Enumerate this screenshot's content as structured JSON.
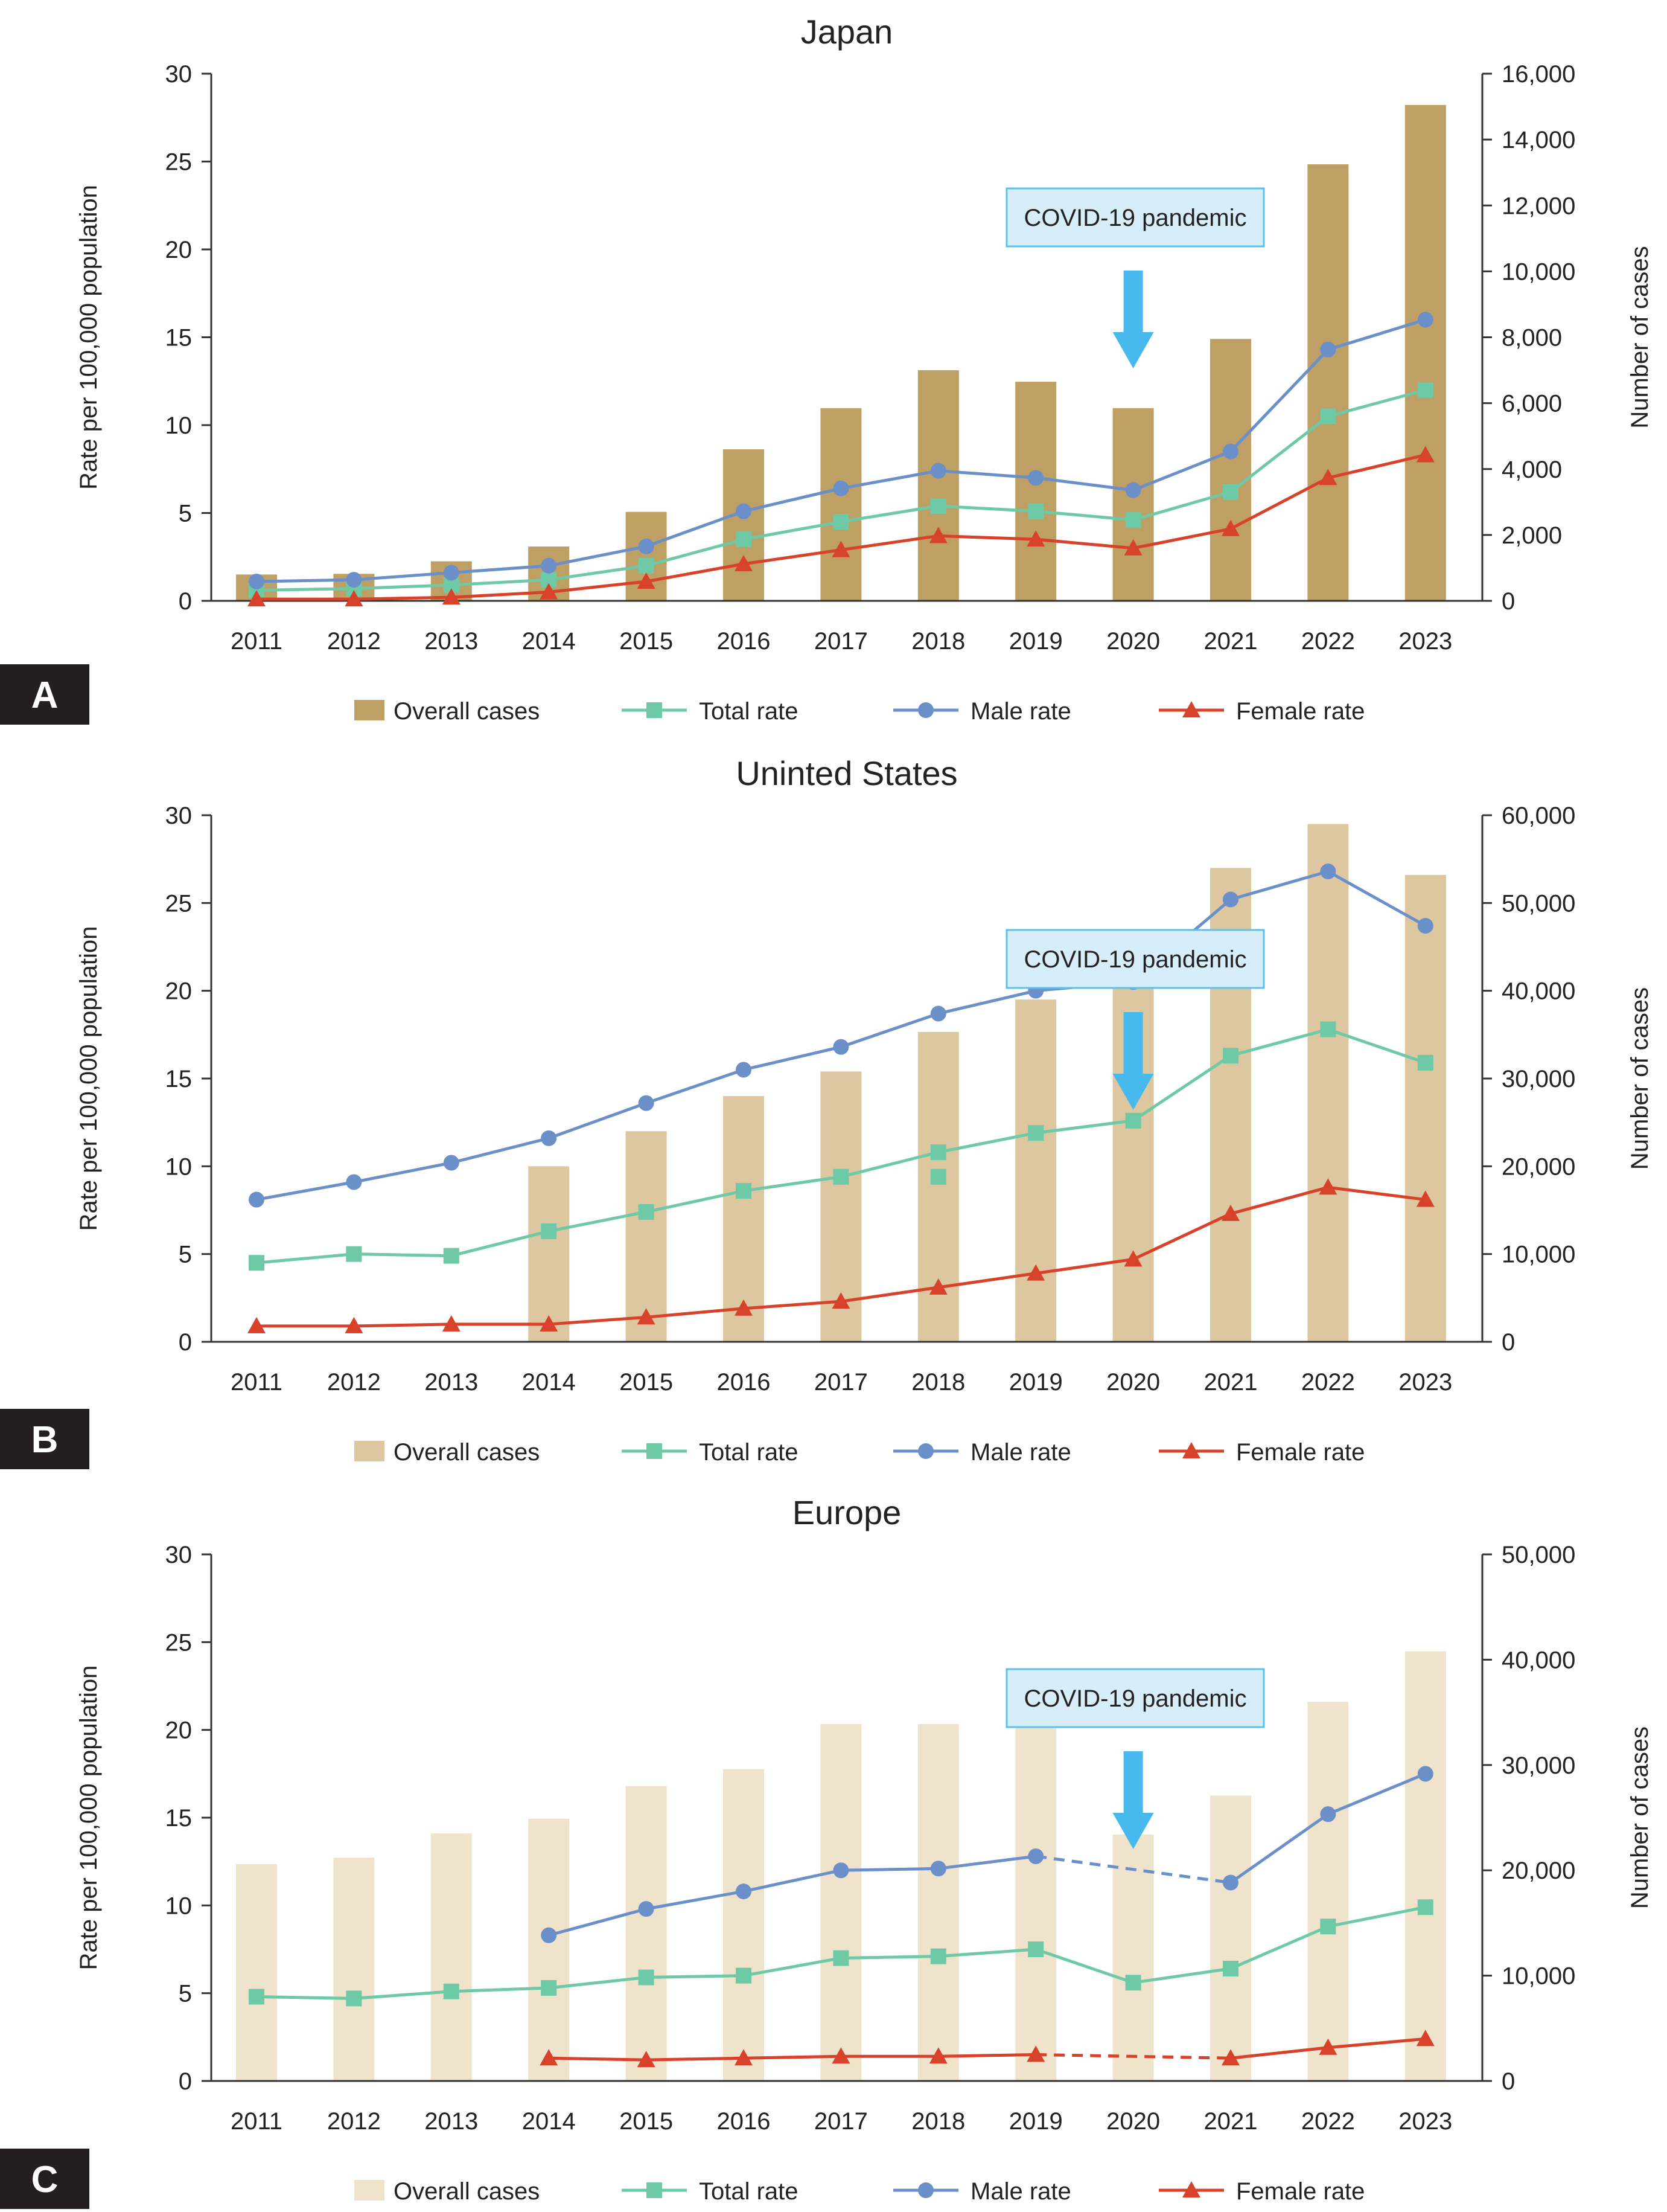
{
  "chart_data": [
    {
      "type": "bar",
      "panel": "A",
      "title": "Japan",
      "ylabel": "Rate per 100,000 population",
      "y2label": "Number of cases",
      "ylim": [
        0,
        30
      ],
      "yticks": [
        0,
        5,
        10,
        15,
        20,
        25,
        30
      ],
      "y2lim": [
        0,
        16000
      ],
      "y2ticks": [
        "0",
        "2,000",
        "4,000",
        "6,000",
        "8,000",
        "10,000",
        "12,000",
        "14,000",
        "16,000"
      ],
      "categories": [
        "2011",
        "2012",
        "2013",
        "2014",
        "2015",
        "2016",
        "2017",
        "2018",
        "2019",
        "2020",
        "2021",
        "2022",
        "2023"
      ],
      "annotation": {
        "text": "COVID-19 pandemic",
        "year": "2020",
        "box_fill": "#d7eefa",
        "box_stroke": "#5bc2ea",
        "arrow_color": "#47b9ec"
      },
      "bar_color": "#bfa064",
      "series": [
        {
          "name": "Overall cases",
          "kind": "bar",
          "axis": "right",
          "color": "#bfa064",
          "values": [
            800,
            820,
            1200,
            1650,
            2700,
            4600,
            5850,
            7000,
            6650,
            5850,
            7950,
            13250,
            15050
          ]
        },
        {
          "name": "Total rate",
          "kind": "line",
          "marker": "square",
          "color": "#6ec9a6",
          "values": [
            0.6,
            0.7,
            0.9,
            1.2,
            2.0,
            3.5,
            4.5,
            5.4,
            5.1,
            4.6,
            6.2,
            10.5,
            12.0
          ]
        },
        {
          "name": "Male rate",
          "kind": "line",
          "marker": "circle",
          "color": "#6b8fc9",
          "values": [
            1.1,
            1.2,
            1.6,
            2.0,
            3.1,
            5.1,
            6.4,
            7.4,
            7.0,
            6.3,
            8.5,
            14.3,
            16.0
          ]
        },
        {
          "name": "Female rate",
          "kind": "line",
          "marker": "triangle",
          "color": "#d8412a",
          "values": [
            0.1,
            0.1,
            0.2,
            0.5,
            1.1,
            2.1,
            2.9,
            3.7,
            3.5,
            3.0,
            4.1,
            7.0,
            8.3
          ]
        }
      ]
    },
    {
      "type": "bar",
      "panel": "B",
      "title": "Uninted States",
      "ylabel": "Rate per 100,000 population",
      "y2label": "Number of cases",
      "ylim": [
        0,
        30
      ],
      "yticks": [
        0,
        5,
        10,
        15,
        20,
        25,
        30
      ],
      "y2lim": [
        0,
        60000
      ],
      "y2ticks": [
        "0",
        "10,000",
        "20,000",
        "30,000",
        "40,000",
        "50,000",
        "60,000"
      ],
      "categories": [
        "2011",
        "2012",
        "2013",
        "2014",
        "2015",
        "2016",
        "2017",
        "2018",
        "2019",
        "2020",
        "2021",
        "2022",
        "2023"
      ],
      "annotation": {
        "text": "COVID-19 pandemic",
        "year": "2020",
        "box_fill": "#d7eefa",
        "box_stroke": "#5bc2ea",
        "arrow_color": "#47b9ec"
      },
      "bar_color": "#dcc7a0",
      "series": [
        {
          "name": "Overall cases",
          "kind": "bar",
          "axis": "right",
          "color": "#dcc7a0",
          "values": [
            null,
            null,
            null,
            20000,
            24000,
            28000,
            30800,
            35300,
            39000,
            41800,
            54000,
            59000,
            53200
          ]
        },
        {
          "name": "Total rate",
          "kind": "line",
          "marker": "square",
          "color": "#6ec9a6",
          "values": [
            4.5,
            5.0,
            4.9,
            6.3,
            7.4,
            8.6,
            9.4,
            10.8,
            11.9,
            12.6,
            16.3,
            17.8,
            15.9
          ],
          "extra_points": [
            {
              "x": "2018",
              "y": 9.4
            }
          ]
        },
        {
          "name": "Male rate",
          "kind": "line",
          "marker": "circle",
          "color": "#6b8fc9",
          "values": [
            8.1,
            9.1,
            10.2,
            11.6,
            13.6,
            15.5,
            16.8,
            18.7,
            20.0,
            20.5,
            25.2,
            26.8,
            23.7
          ]
        },
        {
          "name": "Female rate",
          "kind": "line",
          "marker": "triangle",
          "color": "#d8412a",
          "values": [
            0.9,
            0.9,
            1.0,
            1.0,
            1.4,
            1.9,
            2.3,
            3.1,
            3.9,
            4.7,
            7.3,
            8.8,
            8.1
          ]
        }
      ]
    },
    {
      "type": "bar",
      "panel": "C",
      "title": "Europe",
      "ylabel": "Rate per 100,000 population",
      "y2label": "Number of cases",
      "ylim": [
        0,
        30
      ],
      "yticks": [
        0,
        5,
        10,
        15,
        20,
        25,
        30
      ],
      "y2lim": [
        0,
        50000
      ],
      "y2ticks": [
        "0",
        "10,000",
        "20,000",
        "30,000",
        "40,000",
        "50,000"
      ],
      "categories": [
        "2011",
        "2012",
        "2013",
        "2014",
        "2015",
        "2016",
        "2017",
        "2018",
        "2019",
        "2020",
        "2021",
        "2022",
        "2023"
      ],
      "annotation": {
        "text": "COVID-19 pandemic",
        "year": "2020",
        "box_fill": "#d7eefa",
        "box_stroke": "#5bc2ea",
        "arrow_color": "#47b9ec"
      },
      "bar_color": "#f0e3cc",
      "series": [
        {
          "name": "Overall cases",
          "kind": "bar",
          "axis": "right",
          "color": "#f0e3cc",
          "values": [
            20600,
            21200,
            23500,
            24900,
            28000,
            29600,
            33900,
            33900,
            35200,
            23400,
            27100,
            36000,
            40800
          ]
        },
        {
          "name": "Total rate",
          "kind": "line",
          "marker": "square",
          "color": "#6ec9a6",
          "values": [
            4.8,
            4.7,
            5.1,
            5.3,
            5.9,
            6.0,
            7.0,
            7.1,
            7.5,
            5.6,
            6.4,
            8.8,
            9.9
          ]
        },
        {
          "name": "Male rate",
          "kind": "line",
          "marker": "circle",
          "color": "#6b8fc9",
          "values": [
            null,
            null,
            null,
            8.3,
            9.8,
            10.8,
            12.0,
            12.1,
            12.8,
            null,
            11.3,
            15.2,
            17.5
          ],
          "dashed_bridge": [
            [
              "2019",
              "2021"
            ]
          ]
        },
        {
          "name": "Female rate",
          "kind": "line",
          "marker": "triangle",
          "color": "#d8412a",
          "values": [
            null,
            null,
            null,
            1.3,
            1.2,
            1.3,
            1.4,
            1.4,
            1.5,
            null,
            1.3,
            1.9,
            2.4
          ],
          "dashed_bridge": [
            [
              "2019",
              "2021"
            ]
          ]
        }
      ]
    }
  ]
}
